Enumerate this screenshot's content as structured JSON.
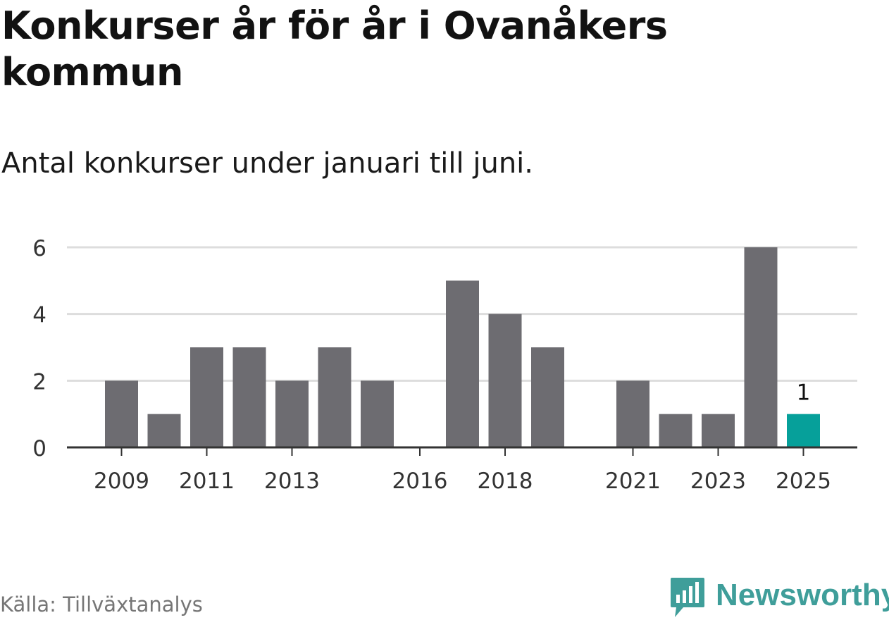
{
  "title": "Konkurser år för år i Ovanåkers kommun",
  "subtitle": "Antal konkurser under januari till juni.",
  "source": "Källa: Tillväxtanalys",
  "brand": {
    "name": "Newsworthy",
    "icon": "bar-chart-speech-bubble-icon",
    "color": "#3f9e9a"
  },
  "chart_data": {
    "type": "bar",
    "categories": [
      "2009",
      "2010",
      "2011",
      "2012",
      "2013",
      "2014",
      "2015",
      "2016",
      "2017",
      "2018",
      "2019",
      "2020",
      "2021",
      "2022",
      "2023",
      "2024",
      "2025"
    ],
    "values": [
      2,
      1,
      3,
      3,
      2,
      3,
      2,
      0,
      5,
      4,
      3,
      0,
      2,
      1,
      1,
      6,
      1
    ],
    "x_tick_labels": [
      "2009",
      "2011",
      "2013",
      "2016",
      "2018",
      "2021",
      "2023",
      "2025"
    ],
    "y_ticks": [
      0,
      2,
      4,
      6
    ],
    "ylim": [
      0,
      6
    ],
    "grid": true,
    "highlight": {
      "category": "2025",
      "value_label": "1"
    },
    "colors": {
      "bar": "#6d6c71",
      "highlight": "#06a09a",
      "grid": "#dddddd",
      "axis": "#333333"
    }
  }
}
